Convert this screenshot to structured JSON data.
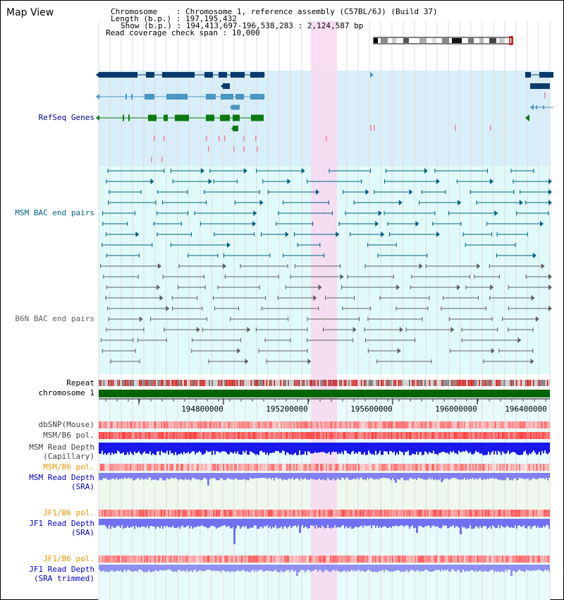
{
  "app": {
    "title": "Map View"
  },
  "header": {
    "chromosome_key": "Chromosome",
    "chromosome_value": "Chromosome 1, reference assembly (C57BL/6J) (Build 37)",
    "length_key": "Length (b.p.)",
    "length_value": "197,195,432",
    "show_key": "Show (b.p.)",
    "show_value": "194,413,697-196,538,283 : 2,124,587 bp",
    "coverage_key": "Read coverage check span",
    "coverage_value": "10,000"
  },
  "tracks": {
    "refseq": {
      "label": "RefSeq Genes",
      "color": "#000080"
    },
    "msm_bac": {
      "label": "MSM BAC end pairs",
      "color": "#006080"
    },
    "b6n_bac": {
      "label": "B6N BAC end pairs",
      "color": "#606060"
    },
    "repeat": {
      "label": "Repeat"
    },
    "chromosome": {
      "label": "chromosome 1"
    },
    "dbsnp": {
      "label": "dbSNP(Mouse)"
    },
    "msm_b6_pol_cap": {
      "label": "MSM/B6 pol."
    },
    "msm_depth_cap": {
      "label_line1": "MSM Read Depth",
      "label_line2": "(Capillary)"
    },
    "msm_b6_pol_sra": {
      "label": "MSM/B6 pol.",
      "color": "#e69500"
    },
    "msm_depth_sra": {
      "label_line1": "MSM Read Depth",
      "label_line2": "(SRA)",
      "color": "#0000c0"
    },
    "jf1_b6_pol": {
      "label": "JF1/B6 pol.",
      "color": "#e69500"
    },
    "jf1_depth_sra": {
      "label_line1": "JF1 Read Depth",
      "label_line2": "(SRA)",
      "color": "#0000c0"
    },
    "jf1_b6_pol_2": {
      "label": "JF1/B6 pol.",
      "color": "#e69500"
    },
    "jf1_depth_trim": {
      "label_line1": "JF1 Read Depth",
      "label_line2": "(SRA trimmed)",
      "color": "#0000c0"
    }
  },
  "axis": {
    "ticks": [
      "194800000",
      "195200000",
      "195600000",
      "196000000",
      "196400000"
    ]
  },
  "colors": {
    "highlight": "#f8d8f0",
    "refseq_bg": "#d8eef8",
    "bac_bg": "#e0fafa",
    "gene_dark": "#0a3a6e",
    "gene_mid": "#4a96c0",
    "gene_green": "#0a7a10"
  }
}
